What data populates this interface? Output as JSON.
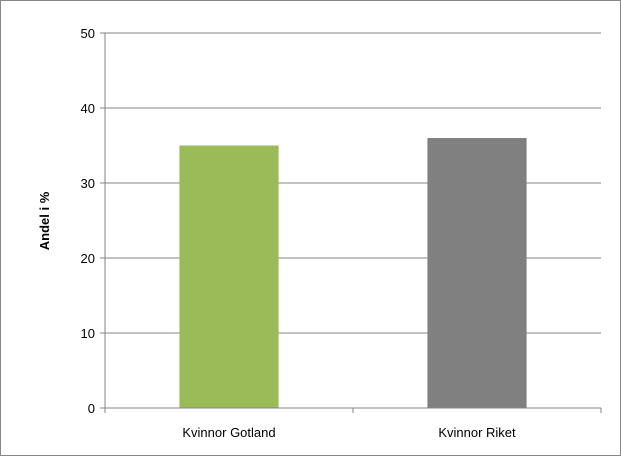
{
  "chart_data": {
    "type": "bar",
    "categories": [
      "Kvinnor Gotland",
      "Kvinnor Riket"
    ],
    "values": [
      35,
      36
    ],
    "bar_colors": [
      "#9BBB59",
      "#808080"
    ],
    "ylabel": "Andel i %",
    "ylim": [
      0,
      50
    ],
    "yticks": [
      0,
      10,
      20,
      30,
      40,
      50
    ],
    "grid": true,
    "legend": false
  },
  "colors": {
    "gridline": "#868686",
    "axis": "#868686",
    "text": "#000000"
  }
}
